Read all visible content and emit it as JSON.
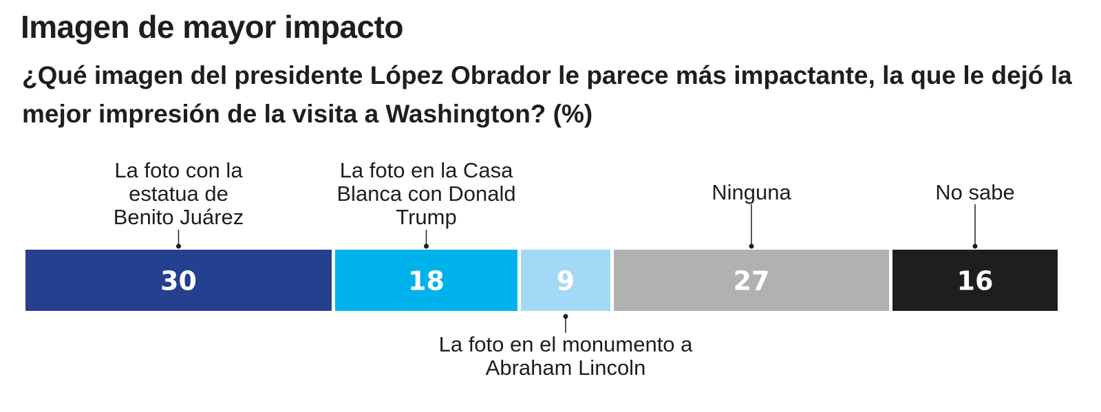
{
  "chart_data": {
    "type": "bar",
    "orientation": "horizontal-stacked",
    "title": "Imagen de mayor impacto",
    "subtitle": "¿Qué imagen del presidente López Obrador le parece más impactante, la que le dejó la mejor impresión de la visita a Washington?  (%)",
    "categories": [
      "La foto con la estatua de Benito Juárez",
      "La foto en la Casa Blanca con Donald Trump",
      "La foto en el monumento a Abraham Lincoln",
      "Ninguna",
      "No sabe"
    ],
    "category_lines": [
      [
        "La foto con la",
        "estatua de",
        "Benito Juárez"
      ],
      [
        "La foto en la Casa",
        "Blanca con Donald",
        "Trump"
      ],
      [
        "La foto en el monumento a",
        "Abraham Lincoln"
      ],
      [
        "Ninguna"
      ],
      [
        "No sabe"
      ]
    ],
    "values": [
      30,
      18,
      9,
      27,
      16
    ],
    "value_labels": [
      "30",
      "18",
      "9",
      "27",
      "16"
    ],
    "colors": [
      "#25408f",
      "#00b2eb",
      "#a3d9f5",
      "#b1b1b1",
      "#1e1e1e"
    ],
    "label_position": [
      "above",
      "above",
      "below",
      "above",
      "above"
    ],
    "unit": "%",
    "total": 100,
    "legend": "none",
    "grid": false
  }
}
